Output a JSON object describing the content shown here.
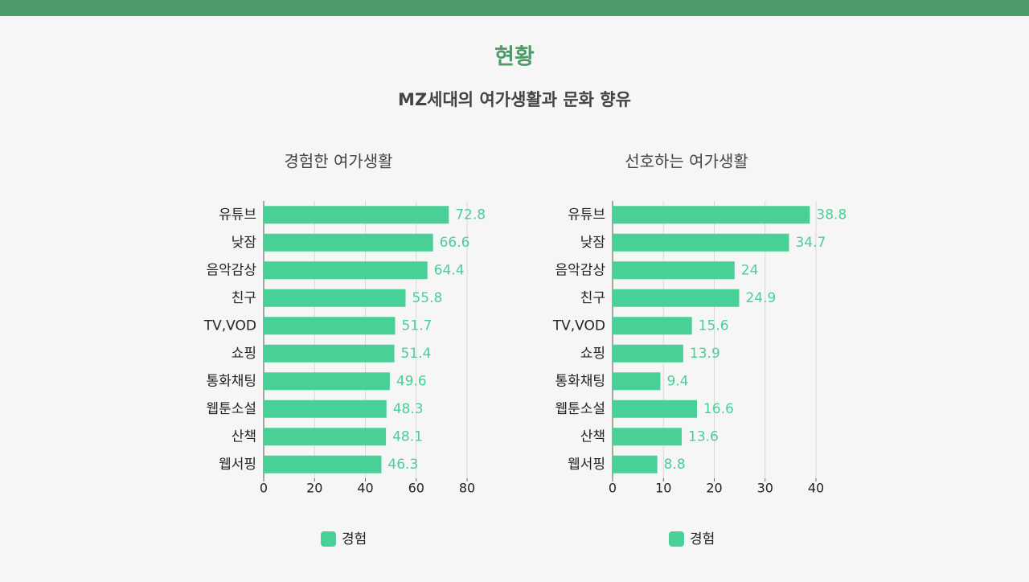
{
  "header": {
    "title": "현황",
    "subtitle": "MZ세대의 여가생활과 문화 향유"
  },
  "chart_data": [
    {
      "type": "barh",
      "title": "경험한 여가생활",
      "categories": [
        "유튜브",
        "낮잠",
        "음악감상",
        "친구",
        "TV,VOD",
        "쇼핑",
        "통화채팅",
        "웹툰소설",
        "산책",
        "웹서핑"
      ],
      "series": [
        {
          "name": "경험",
          "color": "#48d097",
          "values": [
            72.8,
            66.6,
            64.4,
            55.8,
            51.7,
            51.4,
            49.6,
            48.3,
            48.1,
            46.3
          ]
        }
      ],
      "xlim": [
        0,
        80
      ],
      "xticks": [
        0,
        20,
        40,
        60,
        80
      ],
      "grid": true,
      "legend": "bottom"
    },
    {
      "type": "barh",
      "title": "선호하는 여가생활",
      "categories": [
        "유튜브",
        "낮잠",
        "음악감상",
        "친구",
        "TV,VOD",
        "쇼핑",
        "통화채팅",
        "웹툰소설",
        "산책",
        "웹서핑"
      ],
      "series": [
        {
          "name": "경험",
          "color": "#48d097",
          "values": [
            38.8,
            34.7,
            24,
            24.9,
            15.6,
            13.9,
            9.4,
            16.6,
            13.6,
            8.8
          ]
        }
      ],
      "xlim": [
        0,
        40
      ],
      "xticks": [
        0,
        10,
        20,
        30,
        40
      ],
      "grid": true,
      "legend": "bottom"
    }
  ]
}
